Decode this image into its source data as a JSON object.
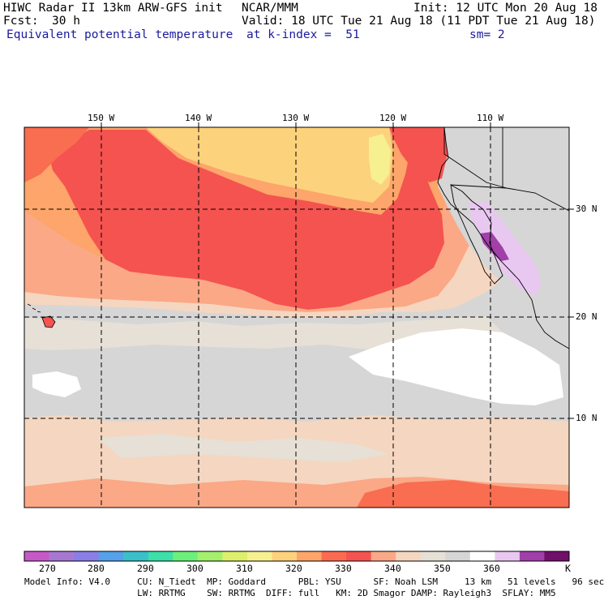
{
  "header": {
    "line1_left": "HIWC Radar II 13km ARW-GFS init",
    "line1_center": "NCAR/MMM",
    "line1_right": "Init: 12 UTC Mon 20 Aug 18",
    "line2_left": "Fcst:",
    "line2_fcst": "30 h",
    "line2_right": "Valid: 18 UTC Tue 21 Aug 18 (11 PDT Tue 21 Aug 18)",
    "line3_field": "Equivalent potential temperature",
    "line3_level": "at k-index =  51",
    "line3_smooth": "sm= 2"
  },
  "map": {
    "longitude_labels": [
      "150 W",
      "140 W",
      "130 W",
      "120 W",
      "110 W"
    ],
    "latitude_labels": [
      "30 N",
      "20 N",
      "10 N"
    ],
    "grid_longitudes": [
      -150,
      -140,
      -130,
      -120,
      -110
    ],
    "grid_latitudes": [
      30,
      20,
      10
    ],
    "lon_range": [
      -157.8,
      -102.5
    ],
    "lat_range": [
      0.8,
      38.8
    ]
  },
  "colorbar": {
    "unit": "K",
    "tick_labels": [
      "270",
      "280",
      "290",
      "300",
      "310",
      "320",
      "330",
      "340",
      "350",
      "360"
    ],
    "colors": [
      "#c659c8",
      "#a878d0",
      "#8a7ee6",
      "#57a0ea",
      "#3ac0c8",
      "#3ce0a8",
      "#6cf07c",
      "#a4f06c",
      "#dcf06c",
      "#f6f090",
      "#fed27c",
      "#fda56a",
      "#fc6a52",
      "#f45350",
      "#fba887",
      "#f5d6c0",
      "#e6e0d6",
      "#d6d6d6",
      "#ffffff",
      "#e8c8f0",
      "#a040a8",
      "#70106a"
    ]
  },
  "footer": {
    "line1": "Model Info: V4.0     CU: N_Tiedt  MP: Goddard      PBL: YSU      SF: Noah LSM     13 km   51 levels   96 sec",
    "line2": "                     LW: RRTMG    SW: RRTMG  DIFF: full   KM: 2D Smagor DAMP: Rayleigh3  SFLAY: MM5"
  },
  "palette": {
    "yellow": "#fdd27c",
    "light_yellow": "#f6f090",
    "orange": "#fda56a",
    "red_orange": "#f96d50",
    "red": "#f45350",
    "salmon": "#fba887",
    "tan": "#f5d6c0",
    "light_gray": "#e6e0d6",
    "gray": "#d6d6d6",
    "white": "#ffffff",
    "lavender": "#e8c8f0",
    "purple": "#a040a8",
    "border": "#000000"
  }
}
